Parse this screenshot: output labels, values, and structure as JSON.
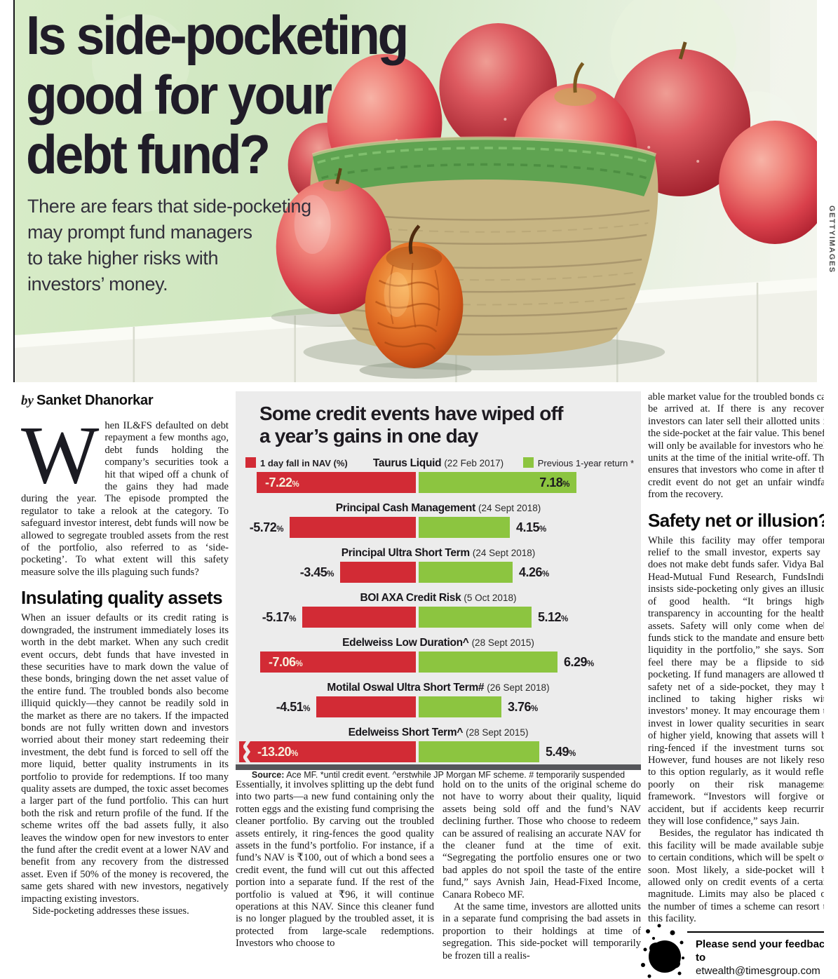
{
  "hero": {
    "title_lines": [
      "Is side-pocketing",
      "good for your",
      "debt fund?"
    ],
    "subtitle_lines": [
      "There are fears that side-pocketing",
      "may prompt fund managers",
      "to take higher risks with",
      "investors’ money."
    ],
    "photo_credit": "GETTYIMAGES"
  },
  "byline": {
    "prefix": "by",
    "author": "Sanket Dhanorkar"
  },
  "article": {
    "col1": {
      "dropcap": "W",
      "p1": "hen IL&FS defaulted on debt repayment a few months ago, debt funds holding the company’s securities took a hit that wiped off a chunk of the gains they had made during the year. The episode prompted the regulator to take a relook at the category. To safeguard investor interest, debt funds will now be allowed to segregate troubled assets from the rest of the portfolio, also referred to as ‘side-pocketing’. To what extent will this safety measure solve the ills plaguing such funds?",
      "heading": "Insulating quality assets",
      "p2": "When an issuer defaults or its credit rating is downgraded, the instrument immediately loses its worth in the debt market. When any such credit event occurs, debt funds that have invested in these securities have to mark down the value of these bonds, bringing down the net asset value of the entire fund. The troubled bonds also become illiquid quickly—they cannot be readily sold in the market as there are no takers. If the impacted bonds are not fully written down and investors worried about their money start redeeming their investment, the debt fund is forced to sell off the more liquid, better quality instruments in its portfolio to provide for redemptions. If too many quality assets are dumped, the toxic asset becomes a larger part of the fund portfolio. This can hurt both the risk and return profile of the fund. If the scheme writes off the bad assets fully, it also leaves the window open for new investors to enter the fund after the credit event at a lower NAV and benefit from any recovery from the distressed asset. Even if 50% of the money is recovered, the same gets shared with new investors, negatively impacting existing investors.",
      "p3": "Side-pocketing addresses these issues."
    },
    "col2": {
      "p1": "Essentially, it involves splitting up the debt fund into two parts—a new fund containing only the rotten eggs and the existing fund comprising the cleaner portfolio. By carving out the troubled assets entirely, it ring-fences the good quality assets in the fund’s portfolio. For instance, if a fund’s NAV is ₹100, out of which a bond sees a credit event, the fund will cut out this affected portion into a separate fund. If the rest of the portfolio is valued at ₹96, it will continue operations at this NAV. Since this cleaner fund is no longer plagued by the troubled asset, it is protected from large-scale redemptions. Investors who choose to"
    },
    "col3": {
      "p1": "hold on to the units of the original scheme do not have to worry about their quality, liquid assets being sold off and the fund’s NAV declining further. Those who choose to redeem can be assured of realising an accurate NAV for the cleaner fund at the time of exit. “Segregating the portfolio ensures one or two bad apples do not spoil the taste of the entire fund,” says Avnish Jain, Head-Fixed Income, Canara Robeco MF.",
      "p2": "At the same time, investors are allotted units in a separate fund comprising the bad assets in proportion to their holdings at time of segregation. This side-pocket will temporarily be frozen till a realis-"
    },
    "col4": {
      "p1": "able market value for the troubled bonds can be arrived at. If there is any recovery, investors can later sell their allotted units in the side-pocket at the fair value. This benefit will only be available for investors who held units at the time of the initial write-off. This ensures that investors who come in after the credit event do not get an unfair windfall from the recovery.",
      "heading": "Safety net or illusion?",
      "p2": "While this facility may offer temporary relief to the small investor, experts say it does not make debt funds safer. Vidya Bala, Head-Mutual Fund Research, FundsIndia, insists side-pocketing only gives an illusion of good health. “It brings higher transparency in accounting for the healthy assets. Safety will only come when debt funds stick to the mandate and ensure better liquidity in the portfolio,” she says. Some feel there may be a flipside to side-pocketing. If fund managers are allowed the safety net of a side-pocket, they may be inclined to taking higher risks with investors’ money. It may encourage them to invest in lower quality securities in search of higher yield, knowing that assets will be ring-fenced if the investment turns sour. However, fund houses are not likely resort to this option regularly, as it would reflect poorly on their risk management framework. “Investors will forgive one accident, but if accidents keep recurring they will lose confidence,” says Jain.",
      "p3": "Besides, the regulator has indicated that this facility will be made available subject to certain conditions, which will be spelt out soon. Most likely, a side-pocket will be allowed only on credit events of a certain magnitude. Limits may also be placed on the number of times a scheme can resort to this facility."
    }
  },
  "chart_data": {
    "type": "bar",
    "title_lines": [
      "Some credit events have wiped off",
      "a year’s gains in one day"
    ],
    "legend": [
      {
        "label": "1 day fall in NAV (%)",
        "color": "#d22b35"
      },
      {
        "label": "Previous 1-year return *",
        "color": "#8cc540"
      }
    ],
    "rows": [
      {
        "fund": "Taurus Liquid",
        "date": "(22 Feb 2017)",
        "fall": -7.22,
        "return": 7.18,
        "fall_label": "-7.22",
        "return_label": "7.18"
      },
      {
        "fund": "Principal Cash Management",
        "date": "(24 Sept 2018)",
        "fall": -5.72,
        "return": 4.15,
        "fall_label": "-5.72",
        "return_label": "4.15"
      },
      {
        "fund": "Principal Ultra Short Term",
        "date": "(24 Sept 2018)",
        "fall": -3.45,
        "return": 4.26,
        "fall_label": "-3.45",
        "return_label": "4.26"
      },
      {
        "fund": "BOI AXA Credit Risk",
        "date": "(5 Oct 2018)",
        "fall": -5.17,
        "return": 5.12,
        "fall_label": "-5.17",
        "return_label": "5.12"
      },
      {
        "fund": "Edelweiss Low Duration^",
        "date": "(28 Sept 2015)",
        "fall": -7.06,
        "return": 6.29,
        "fall_label": "-7.06",
        "return_label": "6.29"
      },
      {
        "fund": "Motilal Oswal Ultra Short Term#",
        "date": "(26 Sept 2018)",
        "fall": -4.51,
        "return": 3.76,
        "fall_label": "-4.51",
        "return_label": "3.76"
      },
      {
        "fund": "Edelweiss Short Term^",
        "date": "(28 Sept 2015)",
        "fall": -13.2,
        "return": 5.49,
        "fall_label": "-13.20",
        "return_label": "5.49",
        "axis_break": true
      }
    ],
    "source_bold": "Source:",
    "source_rest": " Ace MF. *until credit event. ^erstwhile JP Morgan MF scheme. # temporarily suspended",
    "colors": {
      "fall": "#d22b35",
      "return": "#8cc540",
      "background": "#ececec"
    }
  },
  "feedback": {
    "line1": "Please send your feedback to",
    "line2": "etwealth@timesgroup.com"
  }
}
